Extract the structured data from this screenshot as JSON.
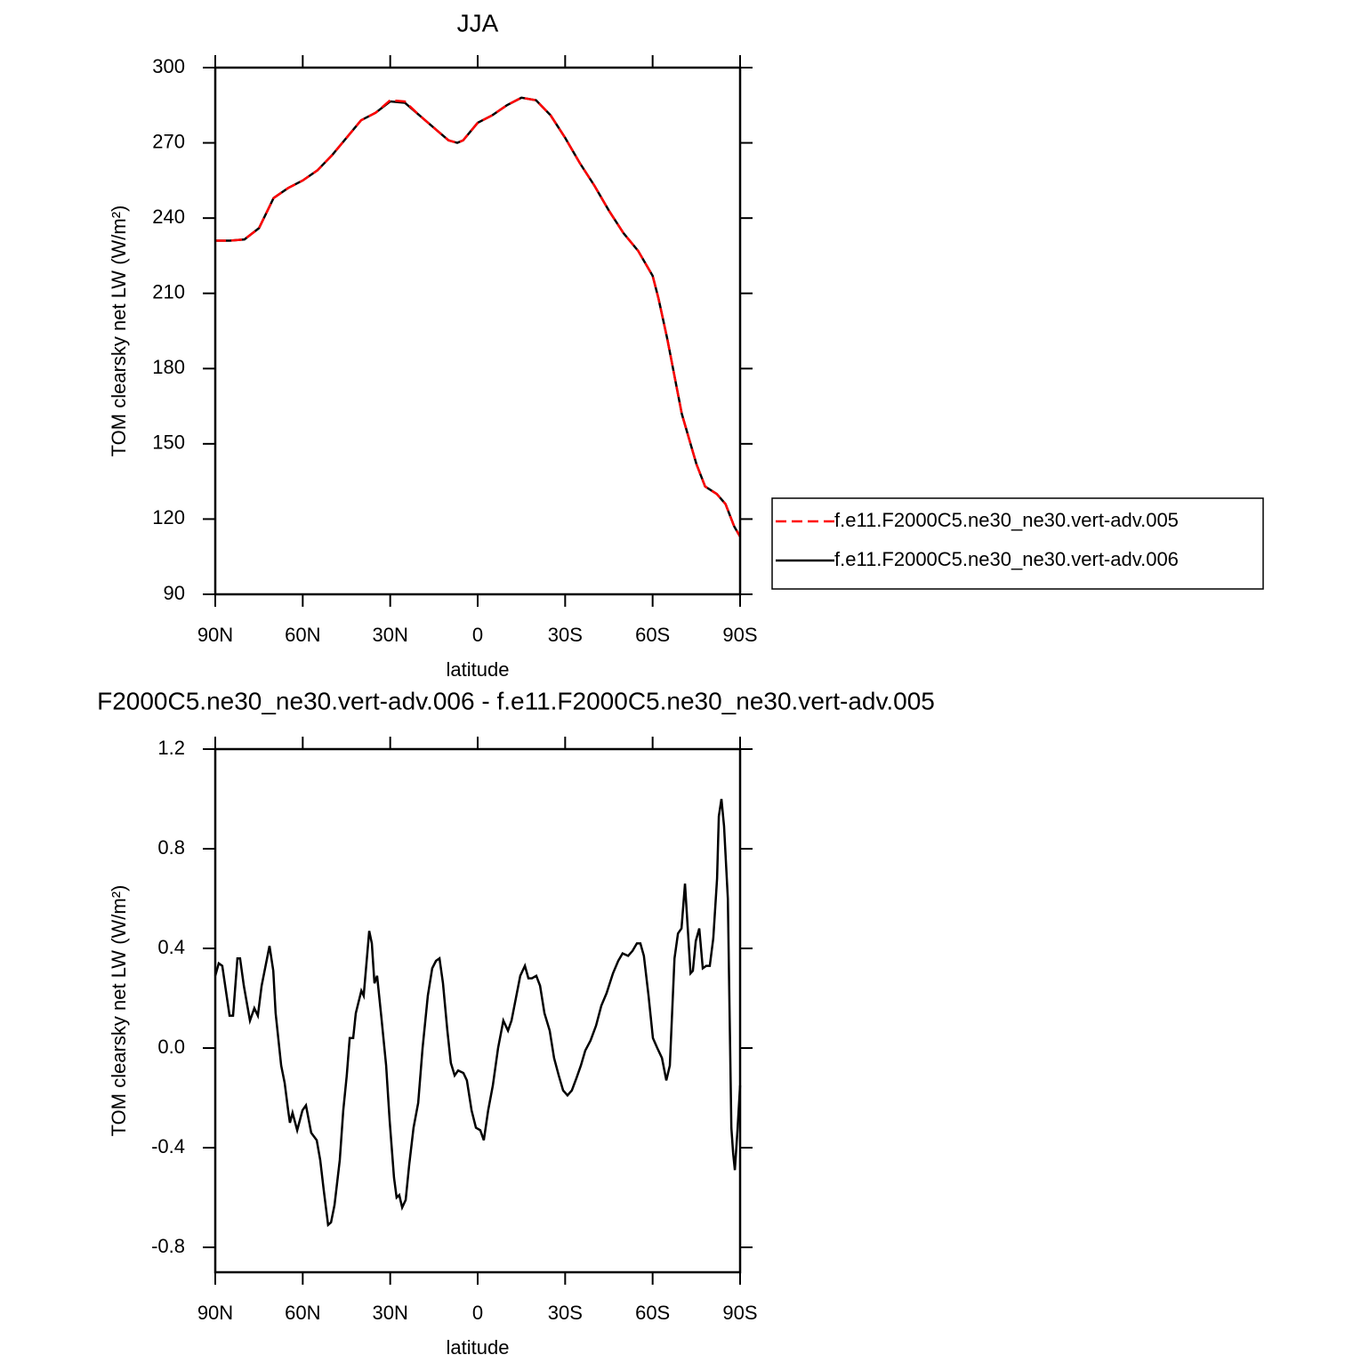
{
  "chart_data": [
    {
      "type": "line",
      "title": "JJA",
      "xlabel": "latitude",
      "ylabel": "TOM clearsky net LW (W/m²)",
      "xlim": [
        90,
        -90
      ],
      "xticks": [
        {
          "value": 90,
          "label": "90N"
        },
        {
          "value": 60,
          "label": "60N"
        },
        {
          "value": 30,
          "label": "30N"
        },
        0,
        {
          "value": -30,
          "label": "30S"
        },
        {
          "value": -60,
          "label": "60S"
        },
        {
          "value": -90,
          "label": "90S"
        }
      ],
      "ylim": [
        90,
        300
      ],
      "yticks": [
        90,
        120,
        150,
        180,
        210,
        240,
        270,
        300
      ],
      "legend": "right",
      "x": [
        90,
        85,
        80,
        75,
        70,
        65,
        60,
        55,
        50,
        45,
        40,
        35,
        30,
        25,
        20,
        15,
        10,
        7,
        5,
        0,
        -5,
        -10,
        -15,
        -20,
        -25,
        -30,
        -35,
        -40,
        -45,
        -50,
        -55,
        -60,
        -62,
        -65,
        -70,
        -75,
        -78,
        -82,
        -85,
        -88,
        -90
      ],
      "series": [
        {
          "name": "f.e11.F2000C5.ne30_ne30.vert-adv.005",
          "color": "#ff0000",
          "dash": "dashed",
          "values": [
            231,
            231,
            231.5,
            236,
            248,
            252,
            255,
            259,
            265,
            272,
            279,
            282,
            287,
            286.5,
            281,
            276,
            271,
            270,
            271,
            278,
            281,
            285,
            288,
            287,
            281,
            272,
            262,
            253,
            243,
            234,
            227,
            217,
            208,
            192,
            162,
            142,
            133,
            130,
            126,
            117,
            113
          ]
        },
        {
          "name": "f.e11.F2000C5.ne30_ne30.vert-adv.006",
          "color": "#000000",
          "dash": "solid",
          "values": [
            231,
            231,
            231.5,
            236,
            248,
            252,
            255,
            259,
            265,
            272,
            279,
            282,
            286.5,
            286,
            281,
            276,
            271,
            270,
            271,
            278,
            281,
            285,
            288,
            287,
            281,
            272,
            262,
            253,
            243,
            234,
            227,
            217,
            208,
            192,
            162,
            142,
            133,
            130,
            126,
            117,
            113
          ]
        }
      ]
    },
    {
      "type": "line",
      "title": "F2000C5.ne30_ne30.vert-adv.006 - f.e11.F2000C5.ne30_ne30.vert-adv.005",
      "xlabel": "latitude",
      "ylabel": "TOM clearsky net LW (W/m²)",
      "xlim": [
        90,
        -90
      ],
      "xticks": [
        {
          "value": 90,
          "label": "90N"
        },
        {
          "value": 60,
          "label": "60N"
        },
        {
          "value": 30,
          "label": "30N"
        },
        0,
        {
          "value": -30,
          "label": "30S"
        },
        {
          "value": -60,
          "label": "60S"
        },
        {
          "value": -90,
          "label": "90S"
        }
      ],
      "ylim": [
        -0.9,
        1.2
      ],
      "yticks": [
        {
          "value": -0.8,
          "label": "-0.8"
        },
        {
          "value": -0.4,
          "label": "-0.4"
        },
        {
          "value": 0,
          "label": "0.0"
        },
        0.4,
        0.8,
        1.2
      ],
      "color": "#000000",
      "x": [
        90,
        88.8,
        87.6,
        85.1,
        83.9,
        82.4,
        81.5,
        80.2,
        78.1,
        76.6,
        75.4,
        74.1,
        71.4,
        70.1,
        69.3,
        67.4,
        66.2,
        65,
        64.4,
        63.5,
        61.9,
        60.1,
        58.9,
        57.1,
        55.2,
        54,
        52.8,
        51.3,
        50.3,
        49.1,
        47.3,
        46.1,
        44.9,
        43.9,
        42.7,
        41.8,
        39.9,
        39.1,
        37.2,
        36.3,
        35.4,
        34.5,
        33,
        31.4,
        30.2,
        28.7,
        27.8,
        26.9,
        25.9,
        24.7,
        23.5,
        22,
        20.4,
        18.9,
        17.1,
        15.6,
        14.3,
        13.1,
        11.9,
        10.4,
        9.2,
        7.9,
        6.7,
        4.9,
        3.7,
        2.1,
        0.6,
        -0.9,
        -2.1,
        -3.6,
        -5.2,
        -7,
        -8.8,
        -10.4,
        -11.6,
        -13.1,
        -14.6,
        -16.2,
        -17.4,
        -18.6,
        -20.1,
        -21.4,
        -22.9,
        -24.7,
        -26.2,
        -27.8,
        -29.3,
        -30.8,
        -32.3,
        -33.9,
        -35.4,
        -36.9,
        -38.7,
        -40.6,
        -42.4,
        -44.2,
        -46.4,
        -48.2,
        -49.7,
        -51.6,
        -53.1,
        -54.6,
        -55.8,
        -57,
        -58.6,
        -60.1,
        -61.6,
        -63.2,
        -64.7,
        -65.9,
        -67.5,
        -68.7,
        -69.9,
        -71.1,
        -73,
        -73.8,
        -74.8,
        -76,
        -77.2,
        -78.4,
        -79.6,
        -80.8,
        -82.1,
        -82.7,
        -83.6,
        -84.5,
        -85.8,
        -87,
        -87.6,
        -88.2,
        -89.1,
        -90
      ],
      "values": [
        0.29,
        0.34,
        0.33,
        0.13,
        0.13,
        0.36,
        0.36,
        0.25,
        0.11,
        0.16,
        0.13,
        0.25,
        0.41,
        0.31,
        0.14,
        -0.07,
        -0.14,
        -0.25,
        -0.3,
        -0.26,
        -0.33,
        -0.25,
        -0.23,
        -0.34,
        -0.37,
        -0.45,
        -0.57,
        -0.71,
        -0.7,
        -0.63,
        -0.45,
        -0.25,
        -0.11,
        0.04,
        0.04,
        0.14,
        0.23,
        0.21,
        0.47,
        0.42,
        0.26,
        0.29,
        0.12,
        -0.07,
        -0.29,
        -0.52,
        -0.6,
        -0.59,
        -0.64,
        -0.61,
        -0.47,
        -0.32,
        -0.22,
        0,
        0.21,
        0.32,
        0.35,
        0.36,
        0.26,
        0.07,
        -0.06,
        -0.11,
        -0.09,
        -0.1,
        -0.13,
        -0.25,
        -0.32,
        -0.33,
        -0.37,
        -0.25,
        -0.15,
        0,
        0.11,
        0.07,
        0.11,
        0.2,
        0.29,
        0.33,
        0.28,
        0.28,
        0.29,
        0.25,
        0.14,
        0.07,
        -0.04,
        -0.11,
        -0.17,
        -0.19,
        -0.17,
        -0.12,
        -0.07,
        -0.01,
        0.03,
        0.09,
        0.17,
        0.22,
        0.3,
        0.35,
        0.38,
        0.37,
        0.39,
        0.42,
        0.42,
        0.37,
        0.21,
        0.04,
        0,
        -0.04,
        -0.13,
        -0.07,
        0.36,
        0.46,
        0.48,
        0.66,
        0.3,
        0.31,
        0.43,
        0.48,
        0.32,
        0.33,
        0.33,
        0.44,
        0.68,
        0.93,
        1,
        0.89,
        0.6,
        -0.32,
        -0.42,
        -0.49,
        -0.33,
        -0.15
      ]
    }
  ]
}
